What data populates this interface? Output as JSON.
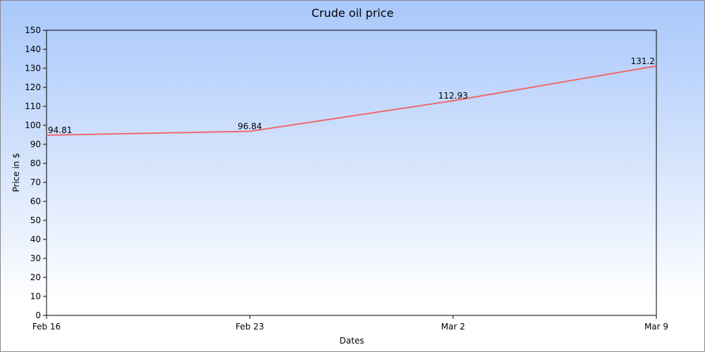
{
  "chart_data": {
    "type": "line",
    "title": "Crude oil price",
    "xlabel": "Dates",
    "ylabel": "Price in $",
    "categories": [
      "Feb 16",
      "Feb 23",
      "Mar 2",
      "Mar 9"
    ],
    "series": [
      {
        "values": [
          94.81,
          96.84,
          112.93,
          131.2
        ],
        "data_labels": [
          "94.81",
          "96.84",
          "112.93",
          "131.2"
        ]
      }
    ],
    "ylim": [
      0,
      150
    ],
    "yticks": [
      0,
      10,
      20,
      30,
      40,
      50,
      60,
      70,
      80,
      90,
      100,
      110,
      120,
      130,
      140,
      150
    ],
    "grid": false,
    "colors": {
      "line": "#ee6a6a",
      "background_top": "#a9c8fb",
      "background_bottom": "#ffffff"
    }
  }
}
